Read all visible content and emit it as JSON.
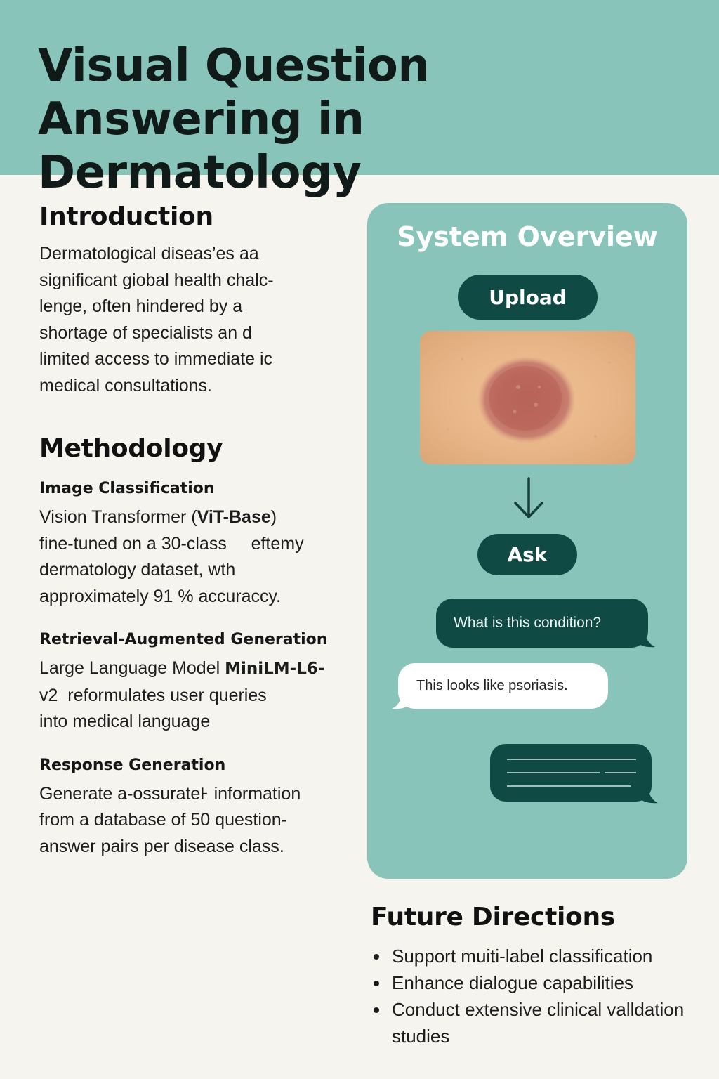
{
  "header": {
    "title": "Visual Question Answering in Dermatology"
  },
  "introduction": {
    "heading": "Introduction",
    "lines": [
      "Dermatological diseas’es aa",
      "significant giobal health chalc-",
      "lenge, often hindered by a",
      "shortage of specialists an d",
      "limited access to immediate ic",
      "medical consultations."
    ]
  },
  "methodology": {
    "heading": "Methodology",
    "image_classification": {
      "heading": "Image Classification",
      "line1_prefix": "Vision Transformer (",
      "line1_bold": "ViT-Base",
      "line1_suffix": ")",
      "lines": [
        "fine-tuned on a 30-class     eftemy",
        "dermatology dataset, wth",
        "approximately 91 % accuraccy."
      ]
    },
    "rag": {
      "heading": "Retrieval-Augmented Generation",
      "line1_prefix": "Large Language Model ",
      "line1_bold": "MiniLM-L6-",
      "lines": [
        "v2  reformulates user queries",
        "into medical language"
      ]
    },
    "response": {
      "heading": "Response Generation",
      "lines": [
        "Generate a-ossurate꜔ information",
        "from a database of 50 question-",
        "answer pairs per disease class."
      ]
    }
  },
  "system_overview": {
    "title": "System Overview",
    "upload_label": "Upload",
    "ask_label": "Ask",
    "question_text": "What is this condition?",
    "answer_text": "This looks like psoriasis."
  },
  "future_directions": {
    "heading": "Future Directions",
    "items": [
      "Support muiti-label classification",
      "Enhance dialogue capabilities",
      "Conduct extensive clinical valldation studies"
    ]
  },
  "colors": {
    "teal": "#88c4ba",
    "dark_teal": "#0f4a45",
    "background": "#f5f4ef"
  }
}
